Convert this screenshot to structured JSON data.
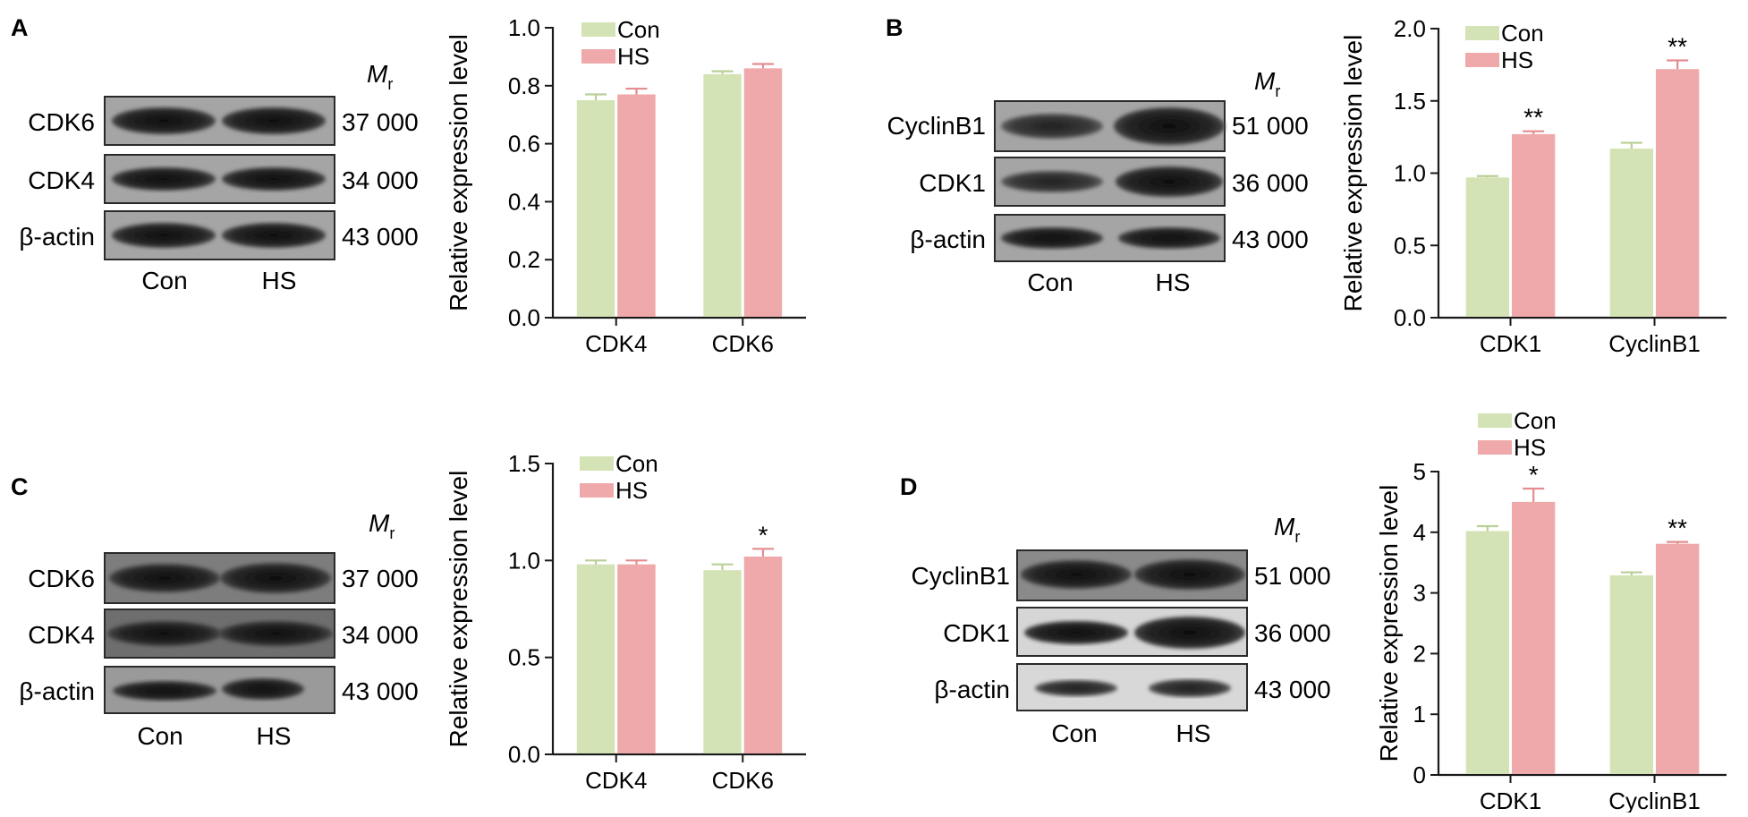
{
  "panels": [
    {
      "letter": "A",
      "blot": {
        "mr_label": "M",
        "mr_sub": "r",
        "rows": [
          {
            "name": "CDK6",
            "mr": "37 000"
          },
          {
            "name": "CDK4",
            "mr": "34 000"
          },
          {
            "name": "β-actin",
            "mr": "43 000"
          }
        ],
        "lanes": [
          "Con",
          "HS"
        ]
      }
    },
    {
      "letter": "B",
      "blot": {
        "mr_label": "M",
        "mr_sub": "r",
        "rows": [
          {
            "name": "CyclinB1",
            "mr": "51 000"
          },
          {
            "name": "CDK1",
            "mr": "36 000"
          },
          {
            "name": "β-actin",
            "mr": "43 000"
          }
        ],
        "lanes": [
          "Con",
          "HS"
        ]
      }
    },
    {
      "letter": "C",
      "blot": {
        "mr_label": "M",
        "mr_sub": "r",
        "rows": [
          {
            "name": "CDK6",
            "mr": "37 000"
          },
          {
            "name": "CDK4",
            "mr": "34 000"
          },
          {
            "name": "β-actin",
            "mr": "43 000"
          }
        ],
        "lanes": [
          "Con",
          "HS"
        ]
      }
    },
    {
      "letter": "D",
      "blot": {
        "mr_label": "M",
        "mr_sub": "r",
        "rows": [
          {
            "name": "CyclinB1",
            "mr": "51 000"
          },
          {
            "name": "CDK1",
            "mr": "36 000"
          },
          {
            "name": "β-actin",
            "mr": "43 000"
          }
        ],
        "lanes": [
          "Con",
          "HS"
        ]
      }
    }
  ],
  "colors": {
    "con": "#d4e3b5",
    "hs": "#efa9aa",
    "con_err": "#b9cf96",
    "hs_err": "#e38d90"
  },
  "chart_data": [
    {
      "panel": "A",
      "type": "bar",
      "categories": [
        "CDK4",
        "CDK6"
      ],
      "series": [
        {
          "name": "Con",
          "values": [
            0.75,
            0.84
          ],
          "errors": [
            0.02,
            0.01
          ]
        },
        {
          "name": "HS",
          "values": [
            0.77,
            0.86
          ],
          "errors": [
            0.02,
            0.015
          ]
        }
      ],
      "significance": {
        "HS": [
          "",
          ""
        ]
      },
      "ylabel": "Relative expression level",
      "ylim": [
        0,
        1.0
      ],
      "yticks": [
        "0.0",
        "0.2",
        "0.4",
        "0.6",
        "0.8",
        "1.0"
      ],
      "legend": "top-left"
    },
    {
      "panel": "B",
      "type": "bar",
      "categories": [
        "CDK1",
        "CyclinB1"
      ],
      "series": [
        {
          "name": "Con",
          "values": [
            0.97,
            1.17
          ],
          "errors": [
            0.01,
            0.04
          ]
        },
        {
          "name": "HS",
          "values": [
            1.27,
            1.72
          ],
          "errors": [
            0.02,
            0.06
          ]
        }
      ],
      "significance": {
        "HS": [
          "**",
          "**"
        ]
      },
      "ylabel": "Relative expression level",
      "ylim": [
        0,
        2.0
      ],
      "yticks": [
        "0.0",
        "0.5",
        "1.0",
        "1.5",
        "2.0"
      ],
      "legend": "top-left"
    },
    {
      "panel": "C",
      "type": "bar",
      "categories": [
        "CDK4",
        "CDK6"
      ],
      "series": [
        {
          "name": "Con",
          "values": [
            0.98,
            0.95
          ],
          "errors": [
            0.02,
            0.03
          ]
        },
        {
          "name": "HS",
          "values": [
            0.98,
            1.02
          ],
          "errors": [
            0.02,
            0.04
          ]
        }
      ],
      "significance": {
        "HS": [
          "",
          "*"
        ]
      },
      "ylabel": "Relative expression level",
      "ylim": [
        0,
        1.5
      ],
      "yticks": [
        "0.0",
        "0.5",
        "1.0",
        "1.5"
      ],
      "legend": "top-left"
    },
    {
      "panel": "D",
      "type": "bar",
      "categories": [
        "CDK1",
        "CyclinB1"
      ],
      "series": [
        {
          "name": "Con",
          "values": [
            4.02,
            3.29
          ],
          "errors": [
            0.08,
            0.05
          ]
        },
        {
          "name": "HS",
          "values": [
            4.5,
            3.81
          ],
          "errors": [
            0.22,
            0.03
          ]
        }
      ],
      "significance": {
        "HS": [
          "*",
          "**"
        ]
      },
      "ylabel": "Relative expression level",
      "ylim": [
        0,
        5
      ],
      "yticks": [
        "0",
        "1",
        "2",
        "3",
        "4",
        "5"
      ],
      "legend": "top-left"
    }
  ]
}
